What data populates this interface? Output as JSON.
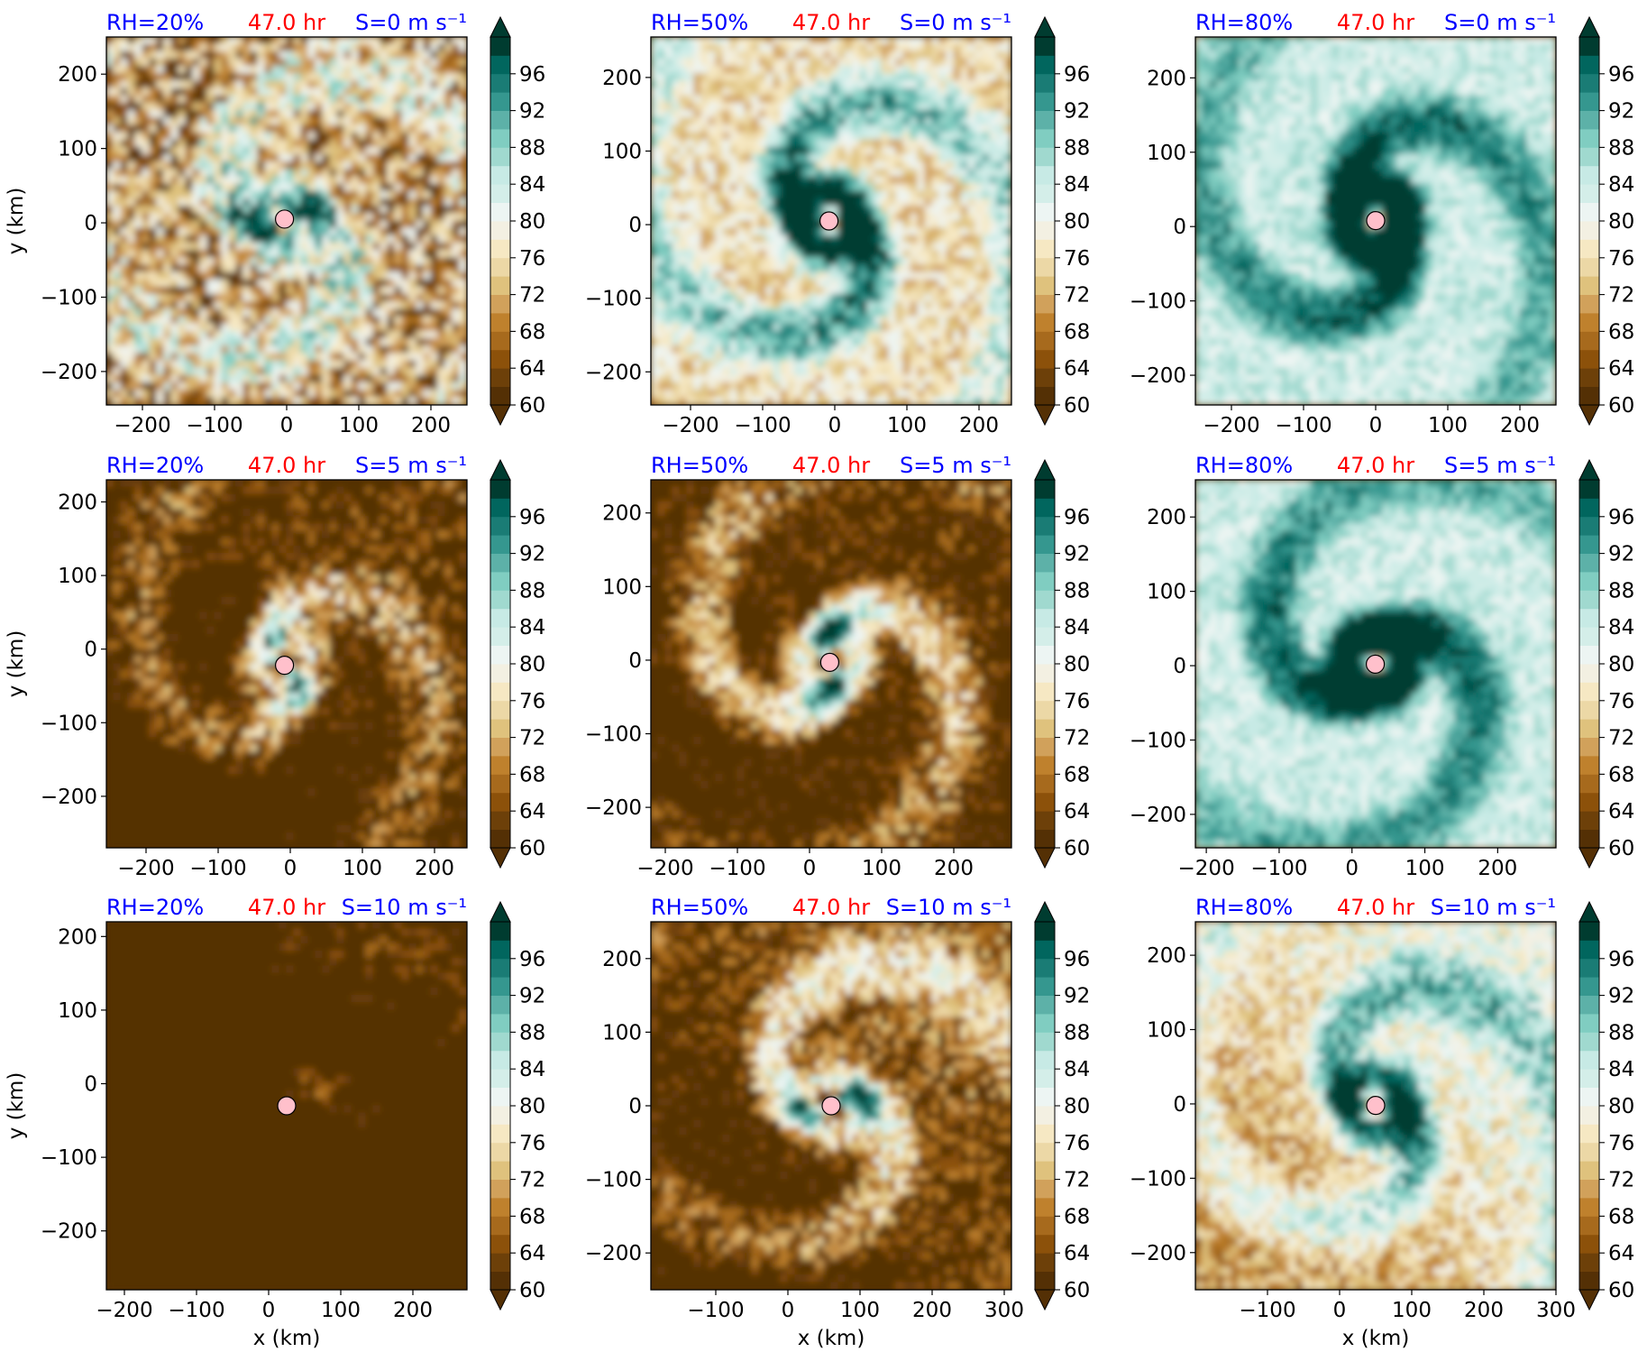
{
  "figure": {
    "colorbar": {
      "ticks": [
        "96",
        "92",
        "88",
        "84",
        "80",
        "76",
        "72",
        "68",
        "64",
        "60"
      ],
      "levels": [
        60,
        62,
        64,
        66,
        68,
        70,
        72,
        74,
        76,
        78,
        80,
        82,
        84,
        86,
        88,
        90,
        92,
        94,
        96,
        98
      ],
      "extend": "both"
    },
    "colors": {
      "title_blue": "#0000ff",
      "title_red": "#ff0000",
      "center_marker": "#ffc0cb",
      "colormap": "BrBG",
      "low": "#543005",
      "mid": "#f5f5f5",
      "high": "#003c30"
    }
  },
  "chart_data": [
    {
      "type": "heatmap",
      "row": 0,
      "col": 0,
      "title_left": "RH=20%",
      "title_center": "47.0 hr",
      "title_right": "S=0 m s⁻¹",
      "xlabel": "",
      "ylabel": "y (km)",
      "xlim": [
        -250,
        250
      ],
      "ylim": [
        -245,
        250
      ],
      "xticks": [
        -200,
        -100,
        0,
        100,
        200
      ],
      "yticks": [
        200,
        100,
        0,
        -100,
        -200
      ],
      "center_km": [
        -3,
        5
      ],
      "pattern": "fragmented-spiral"
    },
    {
      "type": "heatmap",
      "row": 0,
      "col": 1,
      "title_left": "RH=50%",
      "title_center": "47.0 hr",
      "title_right": "S=0 m s⁻¹",
      "xlabel": "",
      "ylabel": "",
      "xlim": [
        -255,
        245
      ],
      "ylim": [
        -245,
        255
      ],
      "xticks": [
        -200,
        -100,
        0,
        100,
        200
      ],
      "yticks": [
        200,
        100,
        0,
        -100,
        -200
      ],
      "center_km": [
        -8,
        5
      ],
      "pattern": "tight-spiral"
    },
    {
      "type": "heatmap",
      "row": 0,
      "col": 2,
      "title_left": "RH=80%",
      "title_center": "47.0 hr",
      "title_right": "S=0 m s⁻¹",
      "xlabel": "",
      "ylabel": "",
      "xlim": [
        -250,
        250
      ],
      "ylim": [
        -240,
        255
      ],
      "xticks": [
        -200,
        -100,
        0,
        100,
        200
      ],
      "yticks": [
        200,
        100,
        0,
        -100,
        -200
      ],
      "center_km": [
        0,
        8
      ],
      "pattern": "moist-spiral"
    },
    {
      "type": "heatmap",
      "row": 1,
      "col": 0,
      "title_left": "RH=20%",
      "title_center": "47.0 hr",
      "title_right": "S=5 m s⁻¹",
      "xlabel": "",
      "ylabel": "y (km)",
      "xlim": [
        -255,
        245
      ],
      "ylim": [
        -270,
        230
      ],
      "xticks": [
        -200,
        -100,
        0,
        100,
        200
      ],
      "yticks": [
        200,
        100,
        0,
        -100,
        -200
      ],
      "center_km": [
        -8,
        -22
      ],
      "pattern": "dry-sheared-spiral"
    },
    {
      "type": "heatmap",
      "row": 1,
      "col": 1,
      "title_left": "RH=50%",
      "title_center": "47.0 hr",
      "title_right": "S=5 m s⁻¹",
      "xlabel": "",
      "ylabel": "",
      "xlim": [
        -220,
        280
      ],
      "ylim": [
        -255,
        245
      ],
      "xticks": [
        -200,
        -100,
        0,
        100,
        200
      ],
      "yticks": [
        200,
        100,
        0,
        -100,
        -200
      ],
      "center_km": [
        28,
        -3
      ],
      "pattern": "dry-environment-spiral"
    },
    {
      "type": "heatmap",
      "row": 1,
      "col": 2,
      "title_left": "RH=80%",
      "title_center": "47.0 hr",
      "title_right": "S=5 m s⁻¹",
      "xlabel": "",
      "ylabel": "",
      "xlim": [
        -215,
        280
      ],
      "ylim": [
        -245,
        250
      ],
      "xticks": [
        -200,
        -100,
        0,
        100,
        200
      ],
      "yticks": [
        200,
        100,
        0,
        -100,
        -200
      ],
      "center_km": [
        32,
        2
      ],
      "pattern": "moist-spiral"
    },
    {
      "type": "heatmap",
      "row": 2,
      "col": 0,
      "title_left": "RH=20%",
      "title_center": "47.0 hr",
      "title_right": "S=10 m s⁻¹",
      "xlabel": "x (km)",
      "ylabel": "y (km)",
      "xlim": [
        -225,
        275
      ],
      "ylim": [
        -280,
        220
      ],
      "xticks": [
        -200,
        -100,
        0,
        100,
        200
      ],
      "yticks": [
        200,
        100,
        0,
        -100,
        -200
      ],
      "center_km": [
        25,
        -30
      ],
      "pattern": "strongly-sheared-dry"
    },
    {
      "type": "heatmap",
      "row": 2,
      "col": 1,
      "title_left": "RH=50%",
      "title_center": "47.0 hr",
      "title_right": "S=10 m s⁻¹",
      "xlabel": "x (km)",
      "ylabel": "",
      "xlim": [
        -190,
        310
      ],
      "ylim": [
        -250,
        250
      ],
      "xticks": [
        -100,
        0,
        100,
        200,
        300
      ],
      "yticks": [
        200,
        100,
        0,
        -100,
        -200
      ],
      "center_km": [
        60,
        0
      ],
      "pattern": "sheared-spiral"
    },
    {
      "type": "heatmap",
      "row": 2,
      "col": 2,
      "title_left": "RH=80%",
      "title_center": "47.0 hr",
      "title_right": "S=10 m s⁻¹",
      "xlabel": "x (km)",
      "ylabel": "",
      "xlim": [
        -200,
        300
      ],
      "ylim": [
        -250,
        245
      ],
      "xticks": [
        -100,
        0,
        100,
        200,
        300
      ],
      "yticks": [
        200,
        100,
        0,
        -100,
        -200
      ],
      "center_km": [
        50,
        -2
      ],
      "pattern": "moist-sheared-spiral"
    }
  ]
}
